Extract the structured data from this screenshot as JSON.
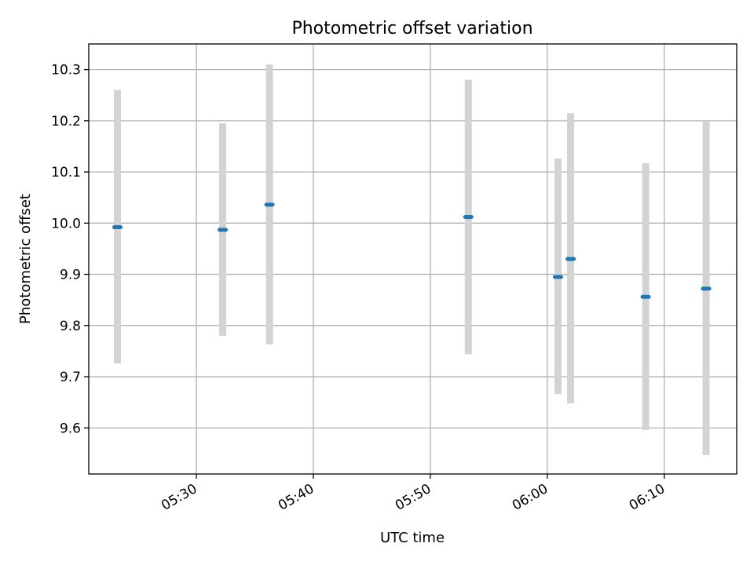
{
  "chart_data": {
    "type": "scatter",
    "title": "Photometric offset variation",
    "xlabel": "UTC time",
    "ylabel": "Photometric offset",
    "x_ticks": [
      "05:30",
      "05:40",
      "05:50",
      "06:00",
      "06:10"
    ],
    "y_ticks": [
      "9.6",
      "9.7",
      "9.8",
      "9.9",
      "10.0",
      "10.1",
      "10.2",
      "10.3"
    ],
    "xlim": [
      "05:20:48",
      "06:16:12"
    ],
    "ylim": [
      9.51,
      10.35
    ],
    "grid": true,
    "colors": {
      "point": "#1f77b4",
      "errorbar": "#d3d3d3",
      "grid": "#b0b0b0"
    },
    "points": [
      {
        "x": "05:23:15",
        "y": 9.992,
        "ymin": 9.726,
        "ymax": 10.26
      },
      {
        "x": "05:32:15",
        "y": 9.987,
        "ymin": 9.78,
        "ymax": 10.195
      },
      {
        "x": "05:36:15",
        "y": 10.036,
        "ymin": 9.763,
        "ymax": 10.31
      },
      {
        "x": "05:53:15",
        "y": 10.012,
        "ymin": 9.744,
        "ymax": 10.28
      },
      {
        "x": "06:00:55",
        "y": 9.895,
        "ymin": 9.666,
        "ymax": 10.126
      },
      {
        "x": "06:02:00",
        "y": 9.93,
        "ymin": 9.648,
        "ymax": 10.215
      },
      {
        "x": "06:08:25",
        "y": 9.856,
        "ymin": 9.596,
        "ymax": 10.117
      },
      {
        "x": "06:13:35",
        "y": 9.872,
        "ymin": 9.547,
        "ymax": 10.2
      }
    ]
  }
}
